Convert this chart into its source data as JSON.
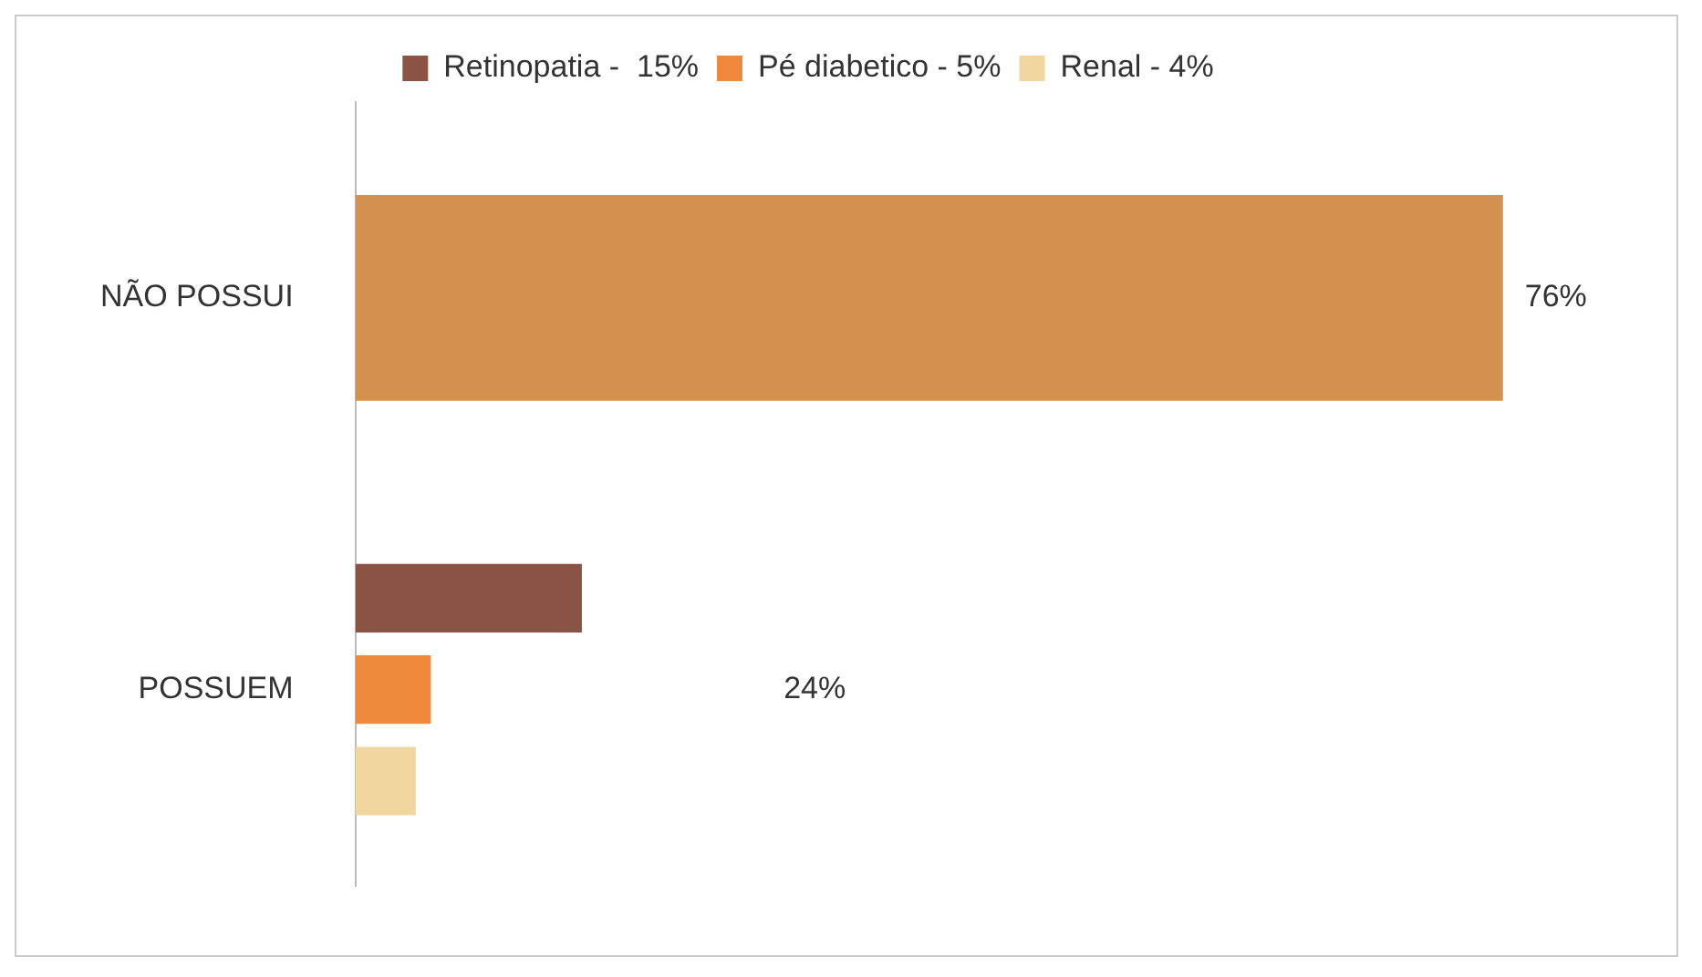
{
  "chart_data": {
    "type": "bar",
    "orientation": "horizontal",
    "categories": [
      "NÃO POSSUI",
      "POSSUEM"
    ],
    "series": [
      {
        "color": "#d4904e",
        "values": [
          76,
          null
        ],
        "value_labels": [
          "76%",
          null
        ]
      },
      {
        "name": "Retinopatia -  15%",
        "color": "#8b5344",
        "values": [
          null,
          15
        ]
      },
      {
        "name": "Pé diabetico - 5%",
        "color": "#ef8a3c",
        "values": [
          null,
          5
        ]
      },
      {
        "name": "Renal - 4%",
        "color": "#f2d6a0",
        "values": [
          null,
          4
        ]
      }
    ],
    "annotations": [
      "24%"
    ],
    "legend": "top",
    "grid": false,
    "tick_labels": "y"
  }
}
